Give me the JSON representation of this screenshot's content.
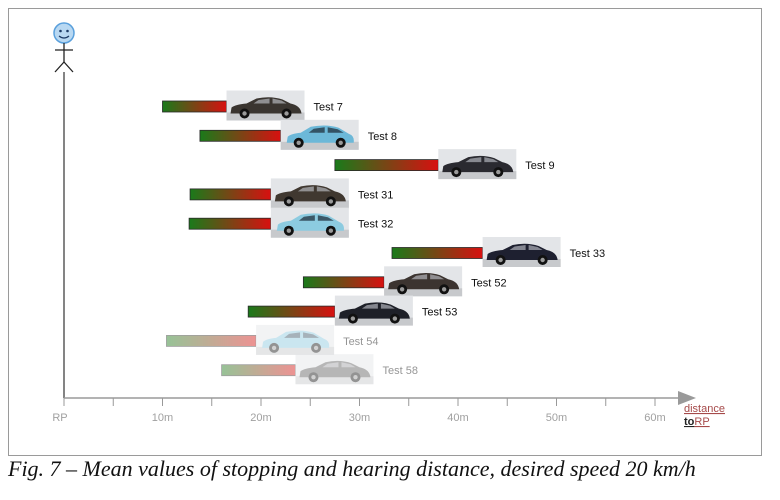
{
  "caption": "Fig. 7 – Mean values of stopping and hearing distance, desired speed 20 km/h",
  "axis": {
    "origin_label": "RP",
    "tick_labels": [
      "10m",
      "20m",
      "30m",
      "40m",
      "50m",
      "60m"
    ],
    "tick_values": [
      10,
      20,
      30,
      40,
      50,
      60
    ],
    "minor_tick_values": [
      5,
      15,
      25,
      35,
      45,
      55
    ],
    "title_line1": "distance",
    "title_line2_prefix": "to",
    "title_line2_suffix": "RP"
  },
  "icons": {
    "pedestrian": "smiley-pedestrian-icon",
    "car": "car-icon"
  },
  "colors": {
    "bar_start": "#1a7a1a",
    "bar_end": "#d81010",
    "axis": "#999999",
    "pedestrian": "#5aa0dc"
  },
  "tests": [
    {
      "label": "Test 7",
      "bar_start_m": 10,
      "bar_end_m": 16.5,
      "car_color": "#3a3530",
      "car_style": "sedan",
      "faded": false
    },
    {
      "label": "Test 8",
      "bar_start_m": 13.8,
      "bar_end_m": 22,
      "car_color": "#6cb8d8",
      "car_style": "hatchback",
      "faded": false
    },
    {
      "label": "Test 9",
      "bar_start_m": 27.5,
      "bar_end_m": 38,
      "car_color": "#2a2a30",
      "car_style": "sedan",
      "faded": false
    },
    {
      "label": "Test 31",
      "bar_start_m": 12.8,
      "bar_end_m": 21,
      "car_color": "#403830",
      "car_style": "sedan",
      "faded": false
    },
    {
      "label": "Test 32",
      "bar_start_m": 12.7,
      "bar_end_m": 21,
      "car_color": "#8ccbe0",
      "car_style": "hatchback",
      "faded": false
    },
    {
      "label": "Test 33",
      "bar_start_m": 33.3,
      "bar_end_m": 42.5,
      "car_color": "#1e2030",
      "car_style": "sedan",
      "faded": false
    },
    {
      "label": "Test 52",
      "bar_start_m": 24.3,
      "bar_end_m": 32.5,
      "car_color": "#3c3430",
      "car_style": "sedan",
      "faded": false
    },
    {
      "label": "Test 53",
      "bar_start_m": 18.7,
      "bar_end_m": 27.5,
      "car_color": "#1e2028",
      "car_style": "sedan",
      "faded": false
    },
    {
      "label": "Test 54",
      "bar_start_m": 10.4,
      "bar_end_m": 19.5,
      "car_color": "#8cc8e0",
      "car_style": "hatchback",
      "faded": true
    },
    {
      "label": "Test 58",
      "bar_start_m": 16,
      "bar_end_m": 23.5,
      "car_color": "#606060",
      "car_style": "sedan",
      "faded": true
    }
  ]
}
